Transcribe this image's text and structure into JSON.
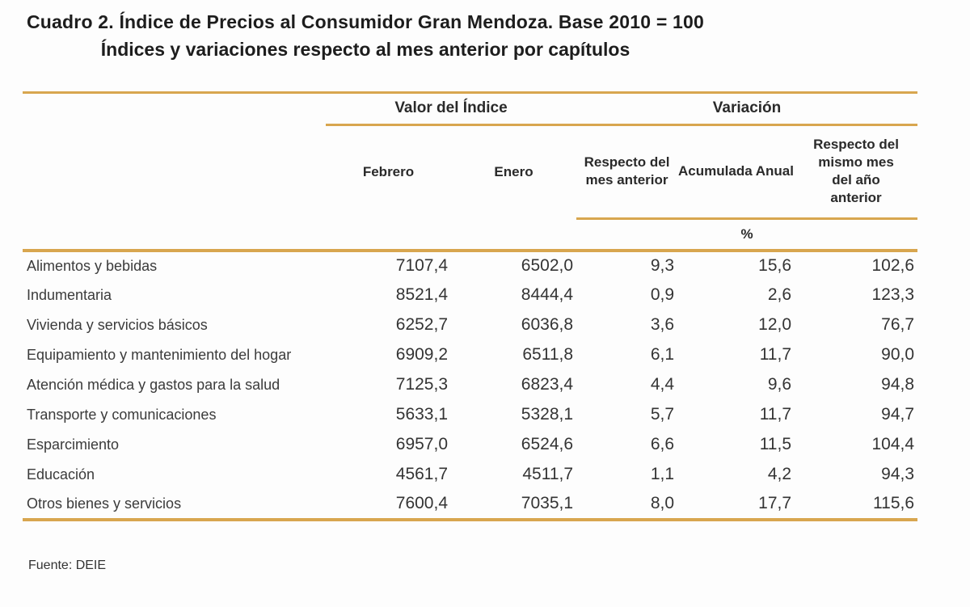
{
  "title": {
    "line1": "Cuadro 2. Índice de Precios al Consumidor Gran Mendoza. Base 2010 = 100",
    "line2": "Índices y variaciones respecto al mes anterior por capítulos"
  },
  "colors": {
    "accent_rule": "#D8A64F"
  },
  "table": {
    "group_headers": {
      "valor": "Valor del Índice",
      "variacion": "Variación"
    },
    "columns": {
      "febrero": "Febrero",
      "enero": "Enero",
      "respecto_mes": "Respecto del mes anterior",
      "acumulada": "Acumulada Anual",
      "respecto_anio": "Respecto del mismo mes del año anterior"
    },
    "unit_label": "%",
    "rows": [
      {
        "label": "Alimentos y bebidas",
        "febrero": "7107,4",
        "enero": "6502,0",
        "var_mes": "9,3",
        "var_acum": "15,6",
        "var_anio": "102,6"
      },
      {
        "label": "Indumentaria",
        "febrero": "8521,4",
        "enero": "8444,4",
        "var_mes": "0,9",
        "var_acum": "2,6",
        "var_anio": "123,3"
      },
      {
        "label": "Vivienda y servicios básicos",
        "febrero": "6252,7",
        "enero": "6036,8",
        "var_mes": "3,6",
        "var_acum": "12,0",
        "var_anio": "76,7"
      },
      {
        "label": "Equipamiento y mantenimiento del hogar",
        "febrero": "6909,2",
        "enero": "6511,8",
        "var_mes": "6,1",
        "var_acum": "11,7",
        "var_anio": "90,0"
      },
      {
        "label": "Atención médica y gastos para la salud",
        "febrero": "7125,3",
        "enero": "6823,4",
        "var_mes": "4,4",
        "var_acum": "9,6",
        "var_anio": "94,8"
      },
      {
        "label": "Transporte y comunicaciones",
        "febrero": "5633,1",
        "enero": "5328,1",
        "var_mes": "5,7",
        "var_acum": "11,7",
        "var_anio": "94,7"
      },
      {
        "label": "Esparcimiento",
        "febrero": "6957,0",
        "enero": "6524,6",
        "var_mes": "6,6",
        "var_acum": "11,5",
        "var_anio": "104,4"
      },
      {
        "label": "Educación",
        "febrero": "4561,7",
        "enero": "4511,7",
        "var_mes": "1,1",
        "var_acum": "4,2",
        "var_anio": "94,3"
      },
      {
        "label": "Otros bienes y servicios",
        "febrero": "7600,4",
        "enero": "7035,1",
        "var_mes": "8,0",
        "var_acum": "17,7",
        "var_anio": "115,6"
      }
    ]
  },
  "footer": {
    "source": "Fuente: DEIE"
  }
}
